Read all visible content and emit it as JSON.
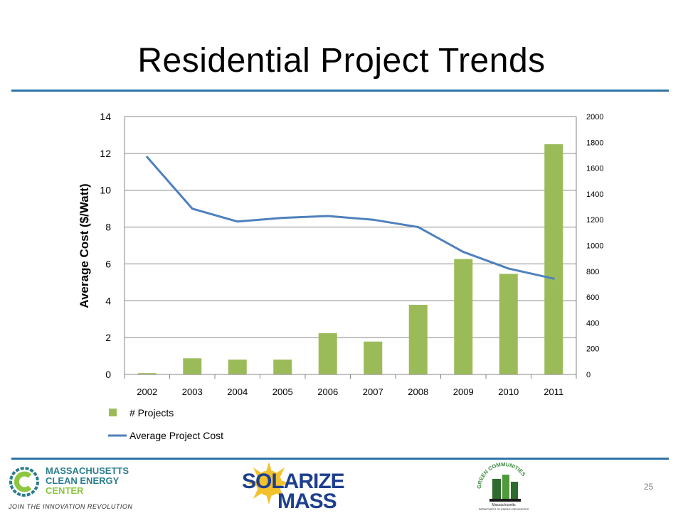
{
  "slide": {
    "title": "Residential Project Trends",
    "page_number": "25"
  },
  "chart_data": {
    "type": "bar",
    "title": "",
    "categories": [
      "2002",
      "2003",
      "2004",
      "2005",
      "2006",
      "2007",
      "2008",
      "2009",
      "2010",
      "2011"
    ],
    "ylabel": "Average Cost ($/Watt)",
    "ylim": [
      0,
      14
    ],
    "y_ticks": [
      "0",
      "2",
      "4",
      "6",
      "8",
      "10",
      "12",
      "14"
    ],
    "y2lim": [
      0,
      2000
    ],
    "y2_ticks": [
      "0",
      "200",
      "400",
      "600",
      "800",
      "1000",
      "1200",
      "1400",
      "1600",
      "1800",
      "2000"
    ],
    "grid": true,
    "legend_position": "bottom-left",
    "series": [
      {
        "name": "# Projects",
        "type": "bar",
        "axis": "right",
        "color": "#9bbb59",
        "values": [
          10,
          125,
          115,
          115,
          320,
          255,
          540,
          895,
          780,
          1785
        ]
      },
      {
        "name": "Average Project Cost",
        "type": "line",
        "axis": "left",
        "color": "#4f81bd",
        "values": [
          11.8,
          9.0,
          8.3,
          8.5,
          8.6,
          8.4,
          8.0,
          6.65,
          5.75,
          5.2
        ]
      }
    ]
  },
  "logos": {
    "mcec": {
      "line1": "MASSACHUSETTS",
      "line2": "CLEAN ENERGY",
      "line3": "CENTER",
      "tagline": "JOIN THE INNOVATION REVOLUTION"
    },
    "solarize": {
      "line1": "SOLARIZE",
      "line2": "MASS"
    },
    "green_communities": {
      "arc": "GREEN COMMUNITIES",
      "sub": "Massachusetts",
      "sub2": "DEPARTMENT OF ENERGY RESOURCES"
    }
  },
  "colors": {
    "accent_rule": "#2e74a8",
    "bars": "#9bbb59",
    "line": "#4f81bd",
    "grid": "#868686"
  }
}
